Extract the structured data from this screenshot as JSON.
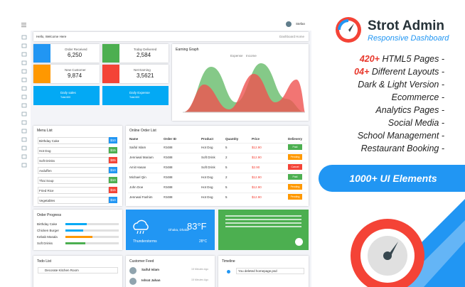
{
  "brand": {
    "title": "Strot Admin",
    "subtitle": "Responsive Dashboard"
  },
  "features": [
    {
      "highlight": "420+",
      "text": "HTML5 Pages -"
    },
    {
      "highlight": "04+",
      "text": "Different Layouts -"
    },
    {
      "text": "Dark & Light Version -"
    },
    {
      "text": "Ecommerce -"
    },
    {
      "text": "Analytics Pages -"
    },
    {
      "text": "Social Media -"
    },
    {
      "text": "School Management -"
    },
    {
      "text": "Restaurant Booking -"
    }
  ],
  "badge": "1000+ UI Elements",
  "dashboard": {
    "user": "Stefan",
    "greeting": "Hello, Welcome Here",
    "breadcrumb": [
      "Dashboard",
      "Home"
    ],
    "stats": [
      {
        "label": "Order Received",
        "value": "6,250"
      },
      {
        "label": "Today Delivered",
        "value": "2,584"
      },
      {
        "label": "New Customer",
        "value": "9,874"
      },
      {
        "label": "Net Earning",
        "value": "3,5621"
      }
    ],
    "mini": [
      {
        "label": "Daily sales",
        "sub": "Total 600"
      },
      {
        "label": "Daily Expense",
        "sub": "Total 600"
      }
    ],
    "graph": {
      "title": "Earning Graph",
      "legend": [
        "Expense",
        "Income"
      ]
    },
    "menu": {
      "title": "Menu List",
      "items": [
        {
          "name": "Birthday Cake",
          "price": "$10"
        },
        {
          "name": "Hot Dog",
          "price": "$15"
        },
        {
          "name": "Soft Drinks",
          "price": "$05"
        },
        {
          "name": "Avduffen",
          "price": "$10"
        },
        {
          "name": "Thai Soup",
          "price": "$10"
        },
        {
          "name": "Fried Rice",
          "price": "$15"
        },
        {
          "name": "Vegetables",
          "price": "$10"
        }
      ]
    },
    "orders": {
      "title": "Online Order List",
      "columns": [
        "Name",
        "Order ID",
        "Product",
        "Quantity",
        "Price",
        "Delievery"
      ],
      "rows": [
        [
          "Saiful Islam",
          "#2488",
          "Hot Dog",
          "5",
          "$12.90",
          "Paid"
        ],
        [
          "Jenniwal Mariam",
          "#2488",
          "Soft Drink",
          "2",
          "$12.90",
          "Pending"
        ],
        [
          "Amit Hasan",
          "#2488",
          "Soft Drink",
          "5",
          "$2.90",
          "Cancel"
        ],
        [
          "Michael Qin",
          "#2488",
          "Hot Dog",
          "2",
          "$12.90",
          "Paid"
        ],
        [
          "John Doe",
          "#2488",
          "Hot Dog",
          "5",
          "$12.90",
          "Pending"
        ],
        [
          "Jennwal Fashim",
          "#2488",
          "Hot Dog",
          "5",
          "$12.90",
          "Pending"
        ]
      ]
    },
    "progress": {
      "title": "Order Progress",
      "items": [
        "Birthday Cake",
        "Chicken Burger",
        "Kebab Masala",
        "Soft Drinks"
      ]
    },
    "weather": {
      "location": "Dhaka, Dhaka",
      "temp": "83°F",
      "condition": "Thunderstorms",
      "low": "28°C"
    },
    "todo": {
      "title": "Todo List",
      "items": [
        "Decorate Kitchen Room"
      ]
    },
    "feed": {
      "title": "Customer Feed",
      "items": [
        {
          "name": "Saiful Islam",
          "time": "15 Minutes Ago"
        },
        {
          "name": "Ishrat Jahan",
          "time": "15 Minutes Ago"
        }
      ]
    },
    "timeline": {
      "title": "Timeline",
      "items": [
        "You deleted homepage.psd"
      ]
    }
  }
}
